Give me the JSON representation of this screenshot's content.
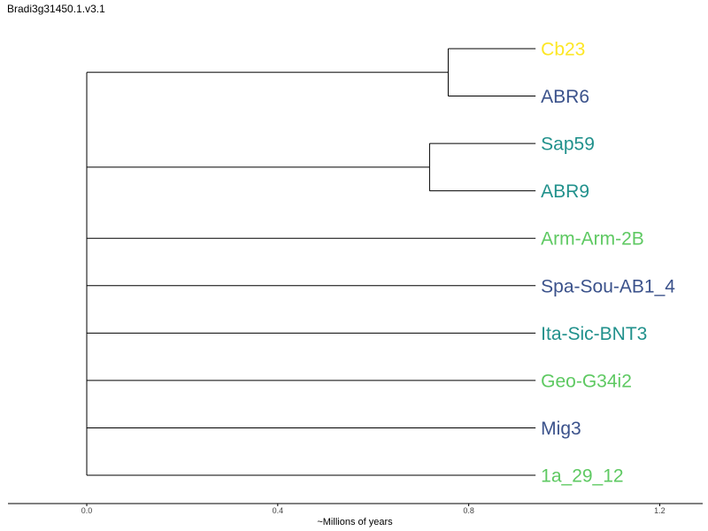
{
  "title": "Bradi3g31450.1.v3.1",
  "chart_data": {
    "type": "dendrogram",
    "xlabel": "~Millions of years",
    "xticks": [
      "0.0",
      "0.4",
      "0.8",
      "1.2"
    ],
    "xtick_values": [
      0.0,
      0.4,
      0.8,
      1.2
    ],
    "xlim": [
      -0.165,
      1.29
    ],
    "tip_x": 0.94,
    "leaves": [
      {
        "name": "Cb23",
        "color": "#fde725"
      },
      {
        "name": "ABR6",
        "color": "#3b528b"
      },
      {
        "name": "Sap59",
        "color": "#21918c"
      },
      {
        "name": "ABR9",
        "color": "#21918c"
      },
      {
        "name": "Arm-Arm-2B",
        "color": "#5ec962"
      },
      {
        "name": "Spa-Sou-AB1_4",
        "color": "#3b528b"
      },
      {
        "name": "Ita-Sic-BNT3",
        "color": "#21918c"
      },
      {
        "name": "Geo-G34i2",
        "color": "#5ec962"
      },
      {
        "name": "Mig3",
        "color": "#3b528b"
      },
      {
        "name": "1a_29_12",
        "color": "#5ec962"
      }
    ],
    "root_x": 0.0,
    "clades": [
      {
        "name": "Cb23+ABR6",
        "x": 0.757,
        "leaves": [
          0,
          1
        ]
      },
      {
        "name": "Sap59+ABR9",
        "x": 0.718,
        "leaves": [
          2,
          3
        ]
      }
    ]
  }
}
